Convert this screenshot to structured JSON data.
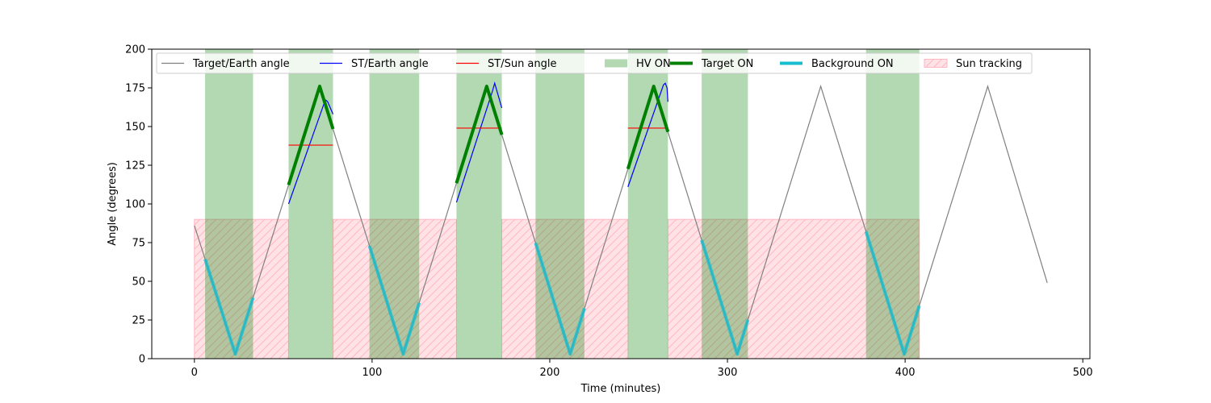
{
  "chart_data": {
    "type": "line",
    "xlabel": "Time (minutes)",
    "ylabel": "Angle (degrees)",
    "xlim": [
      -24,
      504
    ],
    "ylim": [
      0,
      200
    ],
    "xticks": [
      0,
      100,
      200,
      300,
      400,
      500
    ],
    "yticks": [
      0,
      25,
      50,
      75,
      100,
      125,
      150,
      175,
      200
    ],
    "grid": false,
    "legend_position": "top",
    "colors": {
      "target_earth": "#808080",
      "st_earth": "#0000ff",
      "st_sun": "#ff0000",
      "hv_on": "#008000",
      "target_on": "#008000",
      "background_on": "#17becf",
      "sun_tracking": "#ffb6c1"
    },
    "legend": [
      {
        "key": "target_earth",
        "label": "Target/Earth angle",
        "style": "line-thin"
      },
      {
        "key": "st_earth",
        "label": "ST/Earth angle",
        "style": "line-thin"
      },
      {
        "key": "st_sun",
        "label": "ST/Sun angle",
        "style": "line-thin"
      },
      {
        "key": "hv_on",
        "label": "HV ON",
        "style": "patch"
      },
      {
        "key": "target_on",
        "label": "Target ON",
        "style": "line-thick"
      },
      {
        "key": "background_on",
        "label": "Background ON",
        "style": "line-thick"
      },
      {
        "key": "sun_tracking",
        "label": "Sun tracking",
        "style": "hatch"
      }
    ],
    "series": [
      {
        "key": "target_earth",
        "x": [
          0,
          23,
          70.5,
          117.5,
          164.5,
          211.5,
          258.5,
          305.5,
          352.5,
          399.5,
          446.5,
          480
        ],
        "values": [
          86,
          3,
          176,
          3,
          176,
          3,
          176,
          3,
          176,
          3,
          176,
          49
        ]
      },
      {
        "key": "st_earth",
        "segments": [
          {
            "x": [
              53,
              73,
              74,
              75,
              78
            ],
            "values": [
              100,
              165,
              167,
              166,
              158
            ]
          },
          {
            "x": [
              147.5,
              167.5,
              169,
              170,
              173
            ],
            "values": [
              101,
              172,
              178,
              174,
              162
            ]
          },
          {
            "x": [
              244,
              264,
              265,
              266,
              266.5
            ],
            "values": [
              111,
              177,
              178,
              175,
              166
            ]
          }
        ]
      },
      {
        "key": "st_sun",
        "segments": [
          {
            "x": [
              53,
              78
            ],
            "values": [
              138,
              138
            ]
          },
          {
            "x": [
              147.5,
              173
            ],
            "values": [
              149,
              149
            ]
          },
          {
            "x": [
              244,
              266.5
            ],
            "values": [
              149,
              149
            ]
          }
        ]
      }
    ],
    "target_on": [
      [
        53,
        78
      ],
      [
        147.5,
        173
      ],
      [
        244,
        266.5
      ]
    ],
    "background_on": [
      [
        6,
        33
      ],
      [
        98.5,
        126.5
      ],
      [
        192,
        219.5
      ],
      [
        285.5,
        311.5
      ],
      [
        378,
        408
      ]
    ],
    "hv_on": [
      [
        6,
        33
      ],
      [
        53,
        78
      ],
      [
        98.5,
        126.5
      ],
      [
        147.5,
        173
      ],
      [
        192,
        219.5
      ],
      [
        244,
        266.5
      ],
      [
        285.5,
        311.5
      ],
      [
        378,
        408
      ]
    ],
    "sun_tracking": {
      "height": 90,
      "intervals": [
        [
          0,
          53
        ],
        [
          78,
          147.5
        ],
        [
          173,
          244
        ],
        [
          266.5,
          408
        ]
      ]
    }
  }
}
